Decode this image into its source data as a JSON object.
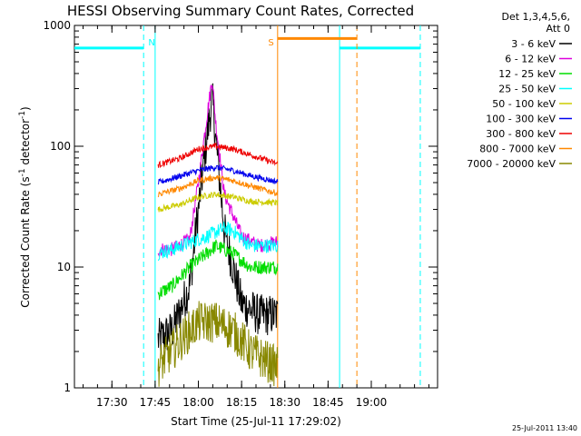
{
  "chart_data": {
    "type": "line",
    "title": "HESSI Observing Summary Count Rates, Corrected",
    "xlabel": "Start Time (25-Jul-11 17:29:02)",
    "ylabel": "Corrected Count Rate (s",
    "ylabel_sup1": "-1",
    "ylabel_mid": " detector",
    "ylabel_sup2": "-1",
    "ylabel_end": ")",
    "x_range_min": [
      17.2833,
      19.3833
    ],
    "y_range": [
      1,
      1000
    ],
    "y_scale": "log",
    "x_ticks": [
      {
        "label": "17:30",
        "t": 17.5
      },
      {
        "label": "17:45",
        "t": 17.75
      },
      {
        "label": "18:00",
        "t": 18.0
      },
      {
        "label": "18:15",
        "t": 18.25
      },
      {
        "label": "18:30",
        "t": 18.5
      },
      {
        "label": "18:45",
        "t": 18.75
      },
      {
        "label": "19:00",
        "t": 19.0
      }
    ],
    "y_ticks": [
      {
        "label": "1",
        "v": 1
      },
      {
        "label": "10",
        "v": 10
      },
      {
        "label": "100",
        "v": 100
      },
      {
        "label": "1000",
        "v": 1000
      }
    ],
    "legend_header": [
      "Det 1,3,4,5,6,",
      "Att 0"
    ],
    "legend_position": "right",
    "timestamp": "25-Jul-2011 13:40",
    "data_window": {
      "start": 17.7667,
      "end": 18.4583
    },
    "series": [
      {
        "name": "3 - 6 keV",
        "color": "#000000",
        "t": [
          17.767,
          17.85,
          17.95,
          18.0,
          18.05,
          18.08,
          18.1,
          18.15,
          18.25,
          18.35,
          18.45
        ],
        "v": [
          2.5,
          3,
          7,
          30,
          120,
          250,
          120,
          20,
          5,
          4,
          4
        ]
      },
      {
        "name": "6 - 12 keV",
        "color": "#dd00dd",
        "t": [
          17.767,
          17.85,
          17.95,
          18.0,
          18.05,
          18.08,
          18.1,
          18.15,
          18.25,
          18.35,
          18.45
        ],
        "v": [
          14,
          14,
          17,
          50,
          180,
          360,
          160,
          40,
          18,
          15,
          16
        ]
      },
      {
        "name": "12 - 25 keV",
        "color": "#00dd00",
        "t": [
          17.767,
          17.85,
          17.95,
          18.05,
          18.1,
          18.2,
          18.3,
          18.45
        ],
        "v": [
          6,
          7,
          10,
          13,
          15,
          13,
          10,
          10
        ]
      },
      {
        "name": "25 - 50 keV",
        "color": "#00ffff",
        "t": [
          17.767,
          17.85,
          17.95,
          18.05,
          18.15,
          18.2,
          18.3,
          18.45
        ],
        "v": [
          13,
          14,
          16,
          18,
          21,
          20,
          15,
          15
        ]
      },
      {
        "name": "50 - 100 keV",
        "color": "#cccc00",
        "t": [
          17.767,
          17.9,
          18.0,
          18.1,
          18.2,
          18.3,
          18.45
        ],
        "v": [
          30,
          33,
          38,
          40,
          38,
          35,
          34
        ]
      },
      {
        "name": "100 - 300 keV",
        "color": "#0000ee",
        "t": [
          17.767,
          17.9,
          18.0,
          18.1,
          18.2,
          18.3,
          18.45
        ],
        "v": [
          50,
          57,
          63,
          67,
          63,
          57,
          51
        ]
      },
      {
        "name": "300 - 800 keV",
        "color": "#ee0000",
        "t": [
          17.767,
          17.9,
          18.0,
          18.1,
          18.2,
          18.3,
          18.45
        ],
        "v": [
          70,
          80,
          95,
          100,
          95,
          85,
          72
        ]
      },
      {
        "name": "800 - 7000 keV",
        "color": "#ff8800",
        "t": [
          17.767,
          17.9,
          18.0,
          18.1,
          18.2,
          18.3,
          18.45
        ],
        "v": [
          40,
          45,
          52,
          55,
          52,
          47,
          41
        ]
      },
      {
        "name": "7000 - 20000 keV",
        "color": "#888800",
        "t": [
          17.767,
          17.9,
          18.0,
          18.1,
          18.2,
          18.3,
          18.45
        ],
        "v": [
          1.5,
          2.5,
          3.5,
          3.5,
          3,
          2,
          1.5
        ]
      }
    ],
    "markers": [
      {
        "label": "N",
        "color": "#00ffff",
        "segments": [
          {
            "t0": 17.2833,
            "t1": 17.6833,
            "v": 650
          },
          {
            "t0": 18.8167,
            "t1": 19.2833,
            "v": 650
          }
        ],
        "solid_lines": [
          17.75,
          18.8167
        ],
        "dashed_lines": [
          17.6833,
          19.2833
        ],
        "label_t": 17.73
      },
      {
        "label": "S",
        "color": "#ff8800",
        "segments": [
          {
            "t0": 18.4583,
            "t1": 18.9167,
            "v": 780
          }
        ],
        "solid_lines": [
          18.4583
        ],
        "dashed_lines": [
          18.9167
        ],
        "label_t": 18.42
      }
    ]
  }
}
